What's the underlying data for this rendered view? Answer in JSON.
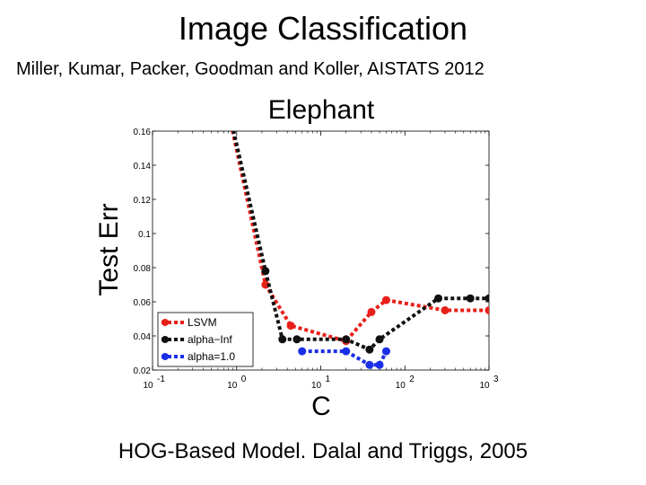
{
  "slide": {
    "title": "Image Classification",
    "citation": "Miller, Kumar, Packer, Goodman and Koller, AISTATS 2012",
    "footer": "HOG-Based Model. Dalal and Triggs, 2005"
  },
  "chart_data": {
    "type": "line",
    "title": "Elephant",
    "xlabel": "C",
    "ylabel": "Test Err",
    "xscale": "log",
    "xlim": [
      0.1,
      1000
    ],
    "ylim": [
      0.02,
      0.16
    ],
    "x_ticks": [
      {
        "value": 0.1,
        "base": "10",
        "exp": "-1"
      },
      {
        "value": 1,
        "base": "10",
        "exp": "0"
      },
      {
        "value": 10,
        "base": "10",
        "exp": "1"
      },
      {
        "value": 100,
        "base": "10",
        "exp": "2"
      },
      {
        "value": 1000,
        "base": "10",
        "exp": "3"
      }
    ],
    "y_ticks": [
      "0.02",
      "0.04",
      "0.06",
      "0.08",
      "0.1",
      "0.12",
      "0.14",
      "0.16"
    ],
    "y_tick_values": [
      0.02,
      0.04,
      0.06,
      0.08,
      0.1,
      0.12,
      0.14,
      0.16
    ],
    "grid": false,
    "legend_position": "bottom-left",
    "series": [
      {
        "name": "LSVM",
        "color": "#e8201a",
        "x": [
          0.6,
          2.2,
          4.4,
          20,
          40,
          60,
          300,
          1000
        ],
        "y": [
          0.2,
          0.07,
          0.046,
          0.037,
          0.054,
          0.061,
          0.055,
          0.055
        ]
      },
      {
        "name": "alpha−Inf",
        "color": "#111111",
        "x": [
          0.6,
          2.2,
          3.5,
          5.2,
          20,
          38,
          50,
          250,
          600,
          1000
        ],
        "y": [
          0.2,
          0.078,
          0.038,
          0.038,
          0.038,
          0.032,
          0.038,
          0.062,
          0.062,
          0.062
        ]
      },
      {
        "name": "alpha=1.0",
        "color": "#1a2fe8",
        "x": [
          6,
          20,
          38,
          50,
          60
        ],
        "y": [
          0.031,
          0.031,
          0.023,
          0.023,
          0.031
        ]
      }
    ]
  }
}
